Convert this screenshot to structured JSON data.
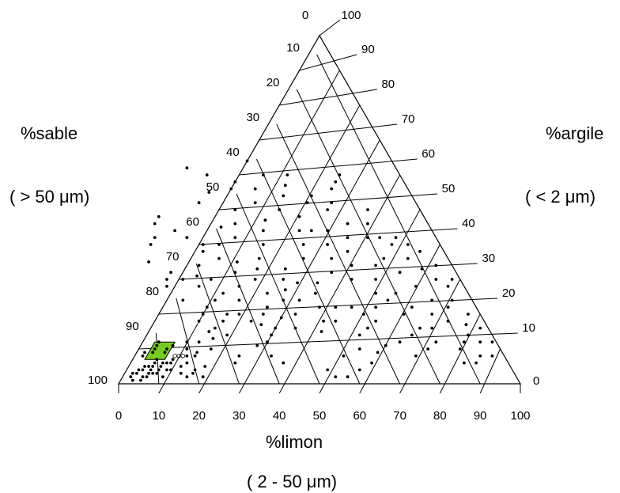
{
  "chart_data": {
    "type": "scatter",
    "subtype": "ternary",
    "axes": {
      "sand": {
        "label": "%sable",
        "unit": "( > 50  μm)",
        "ticks": [
          "0",
          "10",
          "20",
          "30",
          "40",
          "50",
          "60",
          "70",
          "80",
          "90",
          "100"
        ]
      },
      "clay": {
        "label": "%argile",
        "unit": "( < 2  μm)",
        "ticks": [
          "0",
          "10",
          "20",
          "30",
          "40",
          "50",
          "60",
          "70",
          "80",
          "90",
          "100"
        ]
      },
      "silt": {
        "label": "%limon",
        "unit": "( 2 - 50  μm)",
        "ticks": [
          "0",
          "10",
          "20",
          "30",
          "40",
          "50",
          "60",
          "70",
          "80",
          "90",
          "100"
        ]
      }
    },
    "grid": true,
    "highlight_region": {
      "color": "#77cc22",
      "corners": [
        [
          80,
          12
        ],
        [
          85,
          12
        ],
        [
          90,
          7
        ],
        [
          85,
          7
        ]
      ],
      "marked_points": [
        [
          80,
          8
        ],
        [
          81,
          8
        ],
        [
          82,
          8
        ]
      ]
    },
    "point_fields": [
      "sand",
      "clay"
    ],
    "points": [
      [
        96,
        2
      ],
      [
        94,
        3
      ],
      [
        93,
        4
      ],
      [
        95,
        3
      ],
      [
        92,
        4
      ],
      [
        91,
        5
      ],
      [
        93,
        2
      ],
      [
        92,
        2
      ],
      [
        90,
        4
      ],
      [
        91,
        3
      ],
      [
        89,
        5
      ],
      [
        90,
        5
      ],
      [
        88,
        4
      ],
      [
        88,
        6
      ],
      [
        89,
        3
      ],
      [
        87,
        5
      ],
      [
        86,
        6
      ],
      [
        90,
        8
      ],
      [
        89,
        9
      ],
      [
        87,
        9
      ],
      [
        86,
        10
      ],
      [
        85,
        11
      ],
      [
        84,
        12
      ],
      [
        87,
        7
      ],
      [
        85,
        6
      ],
      [
        84,
        6
      ],
      [
        83,
        7
      ],
      [
        82,
        5
      ],
      [
        85,
        4
      ],
      [
        83,
        3
      ],
      [
        82,
        2
      ],
      [
        80,
        3
      ],
      [
        80,
        6
      ],
      [
        79,
        8
      ],
      [
        78,
        10
      ],
      [
        77,
        12
      ],
      [
        76,
        9
      ],
      [
        79,
        4
      ],
      [
        78,
        2
      ],
      [
        76,
        5
      ],
      [
        77,
        8
      ],
      [
        84,
        9
      ],
      [
        83,
        10
      ],
      [
        81,
        11
      ],
      [
        94,
        1
      ],
      [
        96,
        1
      ],
      [
        90,
        3
      ],
      [
        88,
        2
      ],
      [
        86,
        4
      ],
      [
        74,
        12
      ],
      [
        72,
        10
      ],
      [
        70,
        15
      ],
      [
        71,
        18
      ],
      [
        69,
        20
      ],
      [
        68,
        16
      ],
      [
        70,
        13
      ],
      [
        66,
        14
      ],
      [
        65,
        18
      ],
      [
        67,
        22
      ],
      [
        64,
        24
      ],
      [
        63,
        20
      ],
      [
        72,
        24
      ],
      [
        74,
        28
      ],
      [
        73,
        30
      ],
      [
        75,
        35
      ],
      [
        71,
        32
      ],
      [
        69,
        30
      ],
      [
        66,
        28
      ],
      [
        65,
        31
      ],
      [
        63,
        34
      ],
      [
        72,
        40
      ],
      [
        70,
        42
      ],
      [
        68,
        46
      ],
      [
        66,
        48
      ],
      [
        64,
        44
      ],
      [
        62,
        42
      ],
      [
        60,
        38
      ],
      [
        62,
        30
      ],
      [
        61,
        26
      ],
      [
        58,
        24
      ],
      [
        56,
        28
      ],
      [
        55,
        32
      ],
      [
        57,
        36
      ],
      [
        59,
        40
      ],
      [
        60,
        20
      ],
      [
        58,
        18
      ],
      [
        56,
        17
      ],
      [
        54,
        20
      ],
      [
        52,
        22
      ],
      [
        50,
        19
      ],
      [
        53,
        16
      ],
      [
        55,
        14
      ],
      [
        48,
        16
      ],
      [
        46,
        20
      ],
      [
        47,
        24
      ],
      [
        45,
        27
      ],
      [
        50,
        26
      ],
      [
        51,
        30
      ],
      [
        49,
        33
      ],
      [
        47,
        36
      ],
      [
        53,
        35
      ],
      [
        55,
        40
      ],
      [
        50,
        42
      ],
      [
        48,
        46
      ],
      [
        52,
        45
      ],
      [
        44,
        30
      ],
      [
        42,
        33
      ],
      [
        41,
        29
      ],
      [
        43,
        24
      ],
      [
        39,
        22
      ],
      [
        38,
        26
      ],
      [
        36,
        29
      ],
      [
        40,
        18
      ],
      [
        42,
        15
      ],
      [
        37,
        18
      ],
      [
        35,
        22
      ],
      [
        44,
        40
      ],
      [
        42,
        44
      ],
      [
        40,
        47
      ],
      [
        46,
        50
      ],
      [
        44,
        56
      ],
      [
        42,
        58
      ],
      [
        54,
        52
      ],
      [
        50,
        55
      ],
      [
        48,
        60
      ],
      [
        52,
        62
      ],
      [
        36,
        36
      ],
      [
        34,
        40
      ],
      [
        33,
        44
      ],
      [
        31,
        48
      ],
      [
        35,
        50
      ],
      [
        32,
        54
      ],
      [
        30,
        57
      ],
      [
        28,
        60
      ],
      [
        34,
        60
      ],
      [
        36,
        64
      ],
      [
        38,
        56
      ],
      [
        40,
        52
      ],
      [
        30,
        44
      ],
      [
        28,
        40
      ],
      [
        26,
        44
      ],
      [
        29,
        36
      ],
      [
        31,
        32
      ],
      [
        27,
        30
      ],
      [
        25,
        34
      ],
      [
        24,
        38
      ],
      [
        22,
        42
      ],
      [
        20,
        46
      ],
      [
        23,
        50
      ],
      [
        25,
        54
      ],
      [
        27,
        52
      ],
      [
        31,
        22
      ],
      [
        29,
        20
      ],
      [
        27,
        18
      ],
      [
        25,
        22
      ],
      [
        23,
        26
      ],
      [
        21,
        24
      ],
      [
        19,
        20
      ],
      [
        17,
        16
      ],
      [
        20,
        14
      ],
      [
        24,
        12
      ],
      [
        30,
        16
      ],
      [
        33,
        14
      ],
      [
        35,
        10
      ],
      [
        31,
        9
      ],
      [
        28,
        11
      ],
      [
        22,
        8
      ],
      [
        18,
        10
      ],
      [
        15,
        12
      ],
      [
        14,
        16
      ],
      [
        16,
        22
      ],
      [
        18,
        26
      ],
      [
        12,
        20
      ],
      [
        10,
        24
      ],
      [
        12,
        28
      ],
      [
        14,
        32
      ],
      [
        16,
        36
      ],
      [
        19,
        34
      ],
      [
        21,
        30
      ],
      [
        10,
        10
      ],
      [
        8,
        12
      ],
      [
        6,
        14
      ],
      [
        9,
        18
      ],
      [
        7,
        22
      ],
      [
        5,
        24
      ],
      [
        3,
        20
      ],
      [
        5,
        17
      ],
      [
        4,
        12
      ],
      [
        6,
        8
      ],
      [
        8,
        6
      ],
      [
        11,
        6
      ],
      [
        2,
        16
      ],
      [
        4,
        28
      ],
      [
        6,
        30
      ],
      [
        8,
        33
      ],
      [
        10,
        36
      ],
      [
        12,
        40
      ],
      [
        14,
        42
      ],
      [
        10,
        42
      ],
      [
        8,
        40
      ],
      [
        6,
        38
      ],
      [
        4,
        34
      ],
      [
        2,
        30
      ],
      [
        3,
        8
      ],
      [
        1,
        12
      ],
      [
        17,
        42
      ],
      [
        15,
        46
      ],
      [
        13,
        50
      ],
      [
        21,
        52
      ],
      [
        19,
        56
      ],
      [
        17,
        58
      ],
      [
        15,
        60
      ],
      [
        45,
        2
      ],
      [
        46,
        4
      ],
      [
        42,
        2
      ],
      [
        58,
        8
      ],
      [
        56,
        6
      ],
      [
        68,
        6
      ],
      [
        66,
        8
      ],
      [
        57,
        12
      ],
      [
        60,
        11
      ],
      [
        38,
        4
      ],
      [
        40,
        8
      ],
      [
        34,
        6
      ]
    ]
  }
}
